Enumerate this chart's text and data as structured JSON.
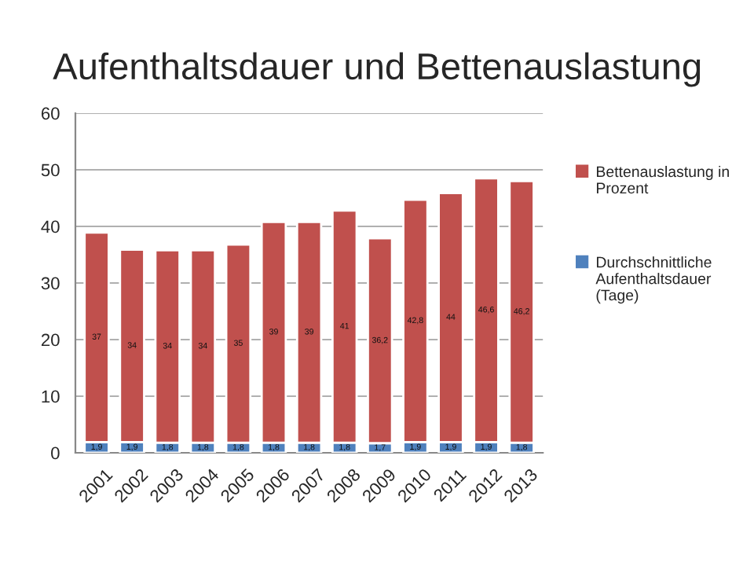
{
  "chart_data": {
    "type": "bar",
    "title": "Aufenthaltsdauer und Bettenauslastung",
    "categories": [
      "2001",
      "2002",
      "2003",
      "2004",
      "2005",
      "2006",
      "2007",
      "2008",
      "2009",
      "2010",
      "2011",
      "2012",
      "2013"
    ],
    "stacked": true,
    "series": [
      {
        "name": "Durchschnittliche Aufenthaltsdauer (Tage)",
        "color": "#4f81bd",
        "values": [
          1.9,
          1.9,
          1.8,
          1.8,
          1.8,
          1.8,
          1.8,
          1.8,
          1.7,
          1.9,
          1.9,
          1.9,
          1.8
        ],
        "value_labels": [
          "1,9",
          "1,9",
          "1,8",
          "1,8",
          "1,8",
          "1,8",
          "1,8",
          "1,8",
          "1,7",
          "1,9",
          "1,9",
          "1,9",
          "1,8"
        ]
      },
      {
        "name": "Bettenauslastung in Prozent",
        "color": "#c0504d",
        "values": [
          37,
          34,
          34,
          34,
          35,
          39,
          39,
          41,
          36.2,
          42.8,
          44,
          46.6,
          46.2
        ],
        "value_labels": [
          "37",
          "34",
          "34",
          "34",
          "35",
          "39",
          "39",
          "41",
          "36,2",
          "42,8",
          "44",
          "46,6",
          "46,2"
        ]
      }
    ],
    "ylim": [
      0,
      60
    ],
    "yticks": [
      0,
      10,
      20,
      30,
      40,
      50,
      60
    ],
    "grid": "y",
    "legend": "right"
  }
}
